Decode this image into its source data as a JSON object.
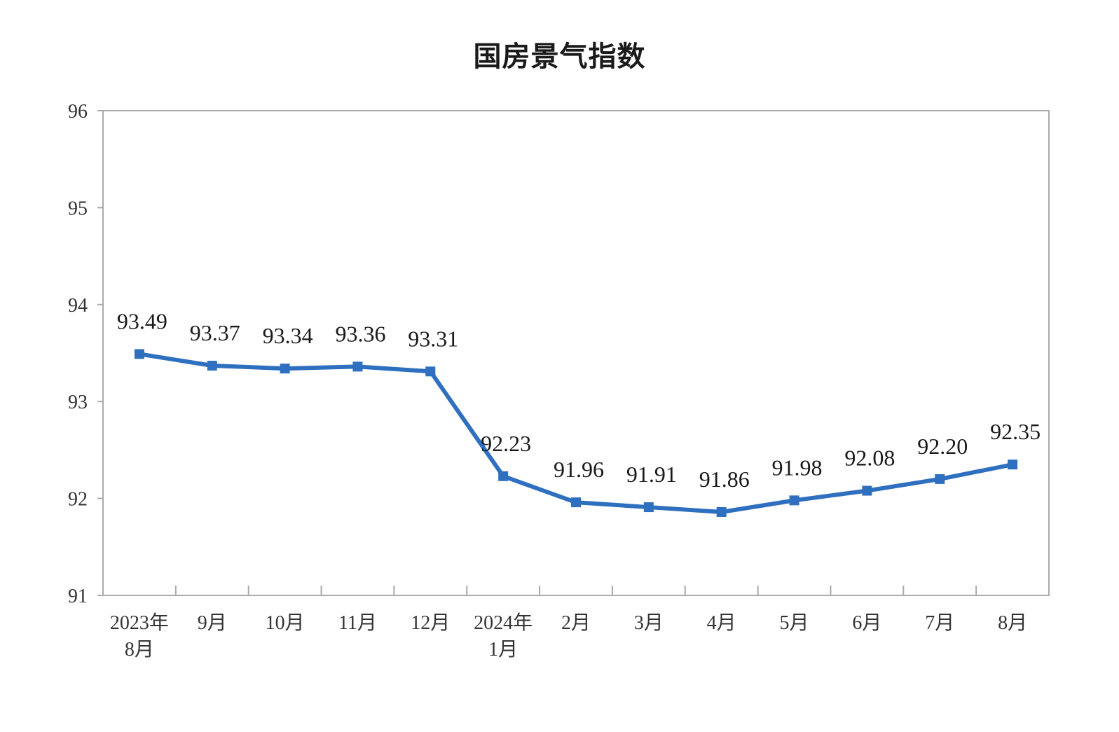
{
  "chart_data": {
    "type": "line",
    "title": "国房景气指数",
    "xlabel": "",
    "ylabel": "",
    "categories": [
      [
        "2023年",
        "8月"
      ],
      [
        "9月"
      ],
      [
        "10月"
      ],
      [
        "11月"
      ],
      [
        "12月"
      ],
      [
        "2024年",
        "1月"
      ],
      [
        "2月"
      ],
      [
        "3月"
      ],
      [
        "4月"
      ],
      [
        "5月"
      ],
      [
        "6月"
      ],
      [
        "7月"
      ],
      [
        "8月"
      ]
    ],
    "values": [
      93.49,
      93.37,
      93.34,
      93.36,
      93.31,
      92.23,
      91.96,
      91.91,
      91.86,
      91.98,
      92.08,
      92.2,
      92.35
    ],
    "value_labels": [
      "93.49",
      "93.37",
      "93.34",
      "93.36",
      "93.31",
      "92.23",
      "91.96",
      "91.91",
      "91.86",
      "91.98",
      "92.08",
      "92.20",
      "92.35"
    ],
    "ylim": [
      91,
      96
    ],
    "yticks": [
      "91",
      "92",
      "93",
      "94",
      "95",
      "96"
    ],
    "grid": false,
    "legend": "none",
    "colors": {
      "line": "#2f6fbf",
      "axis": "#aaaaaa",
      "text": "#333333"
    }
  }
}
